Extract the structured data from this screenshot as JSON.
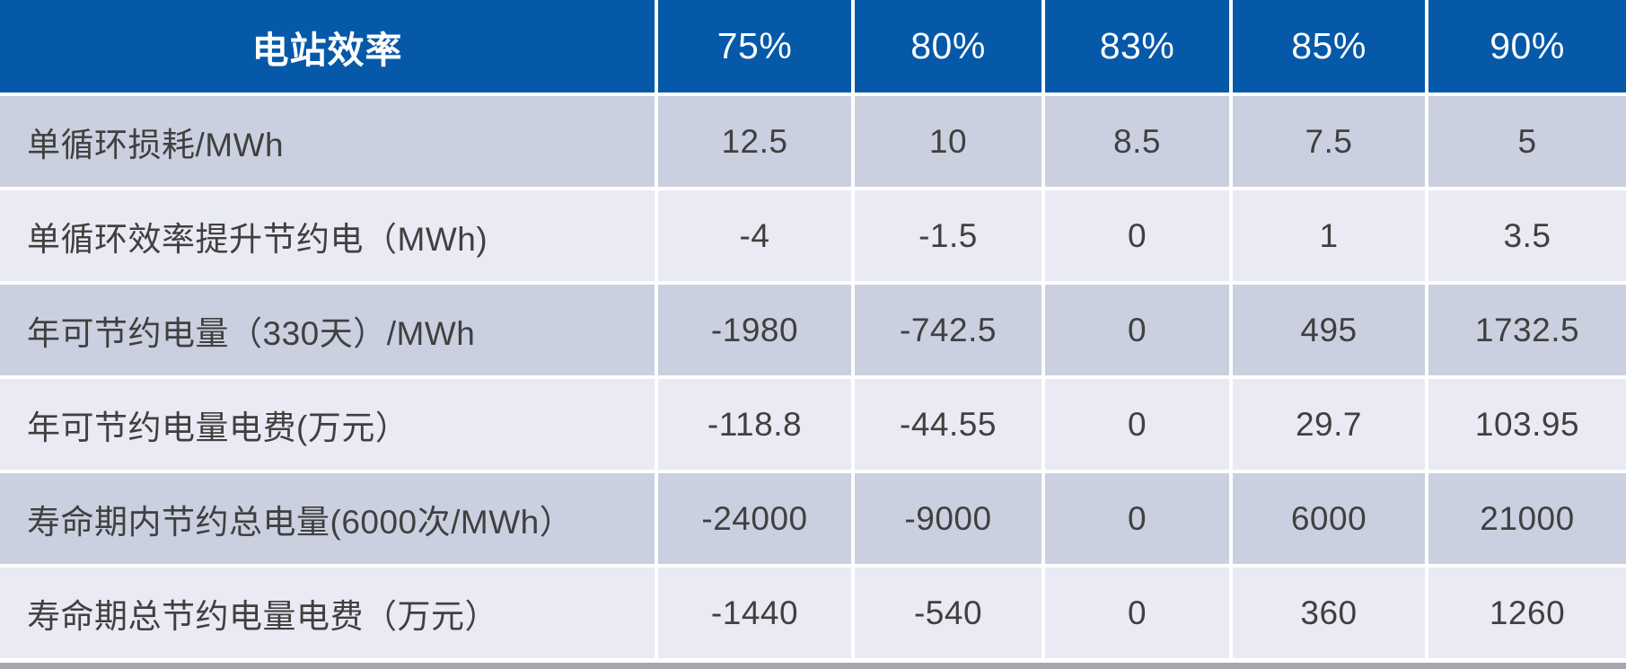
{
  "table": {
    "header": {
      "title": "电站效率",
      "columns": [
        "75%",
        "80%",
        "83%",
        "85%",
        "90%"
      ]
    },
    "rows": [
      {
        "label": "单循环损耗/MWh",
        "values": [
          "12.5",
          "10",
          "8.5",
          "7.5",
          "5"
        ]
      },
      {
        "label": "单循环效率提升节约电（MWh)",
        "values": [
          "-4",
          "-1.5",
          "0",
          "1",
          "3.5"
        ]
      },
      {
        "label": "年可节约电量（330天）/MWh",
        "values": [
          "-1980",
          "-742.5",
          "0",
          "495",
          "1732.5"
        ]
      },
      {
        "label": "年可节约电量电费(万元）",
        "values": [
          "-118.8",
          "-44.55",
          "0",
          "29.7",
          "103.95"
        ]
      },
      {
        "label": "寿命期内节约总电量(6000次/MWh）",
        "values": [
          "-24000",
          "-9000",
          "0",
          "6000",
          "21000"
        ]
      },
      {
        "label": "寿命期总节约电量电费（万元）",
        "values": [
          "-1440",
          "-540",
          "0",
          "360",
          "1260"
        ]
      }
    ],
    "colors": {
      "header_bg": "#0559A8",
      "header_text": "#FFFFFF",
      "row_dark": "#CBD0E0",
      "row_light": "#E9EAF3",
      "text": "#404040",
      "bottom_strip": "#A5A8B0"
    }
  },
  "chart_data": {
    "type": "table",
    "title": "电站效率",
    "categories": [
      "75%",
      "80%",
      "83%",
      "85%",
      "90%"
    ],
    "series": [
      {
        "name": "单循环损耗/MWh",
        "values": [
          12.5,
          10,
          8.5,
          7.5,
          5
        ]
      },
      {
        "name": "单循环效率提升节约电（MWh)",
        "values": [
          -4,
          -1.5,
          0,
          1,
          3.5
        ]
      },
      {
        "name": "年可节约电量（330天）/MWh",
        "values": [
          -1980,
          -742.5,
          0,
          495,
          1732.5
        ]
      },
      {
        "name": "年可节约电量电费(万元）",
        "values": [
          -118.8,
          -44.55,
          0,
          29.7,
          103.95
        ]
      },
      {
        "name": "寿命期内节约总电量(6000次/MWh）",
        "values": [
          -24000,
          -9000,
          0,
          6000,
          21000
        ]
      },
      {
        "name": "寿命期总节约电量电费（万元）",
        "values": [
          -1440,
          -540,
          0,
          360,
          1260
        ]
      }
    ],
    "layout_hints": {
      "header_fill": "#0559A8",
      "banded_rows": true,
      "grid": "white 4px separators"
    }
  }
}
